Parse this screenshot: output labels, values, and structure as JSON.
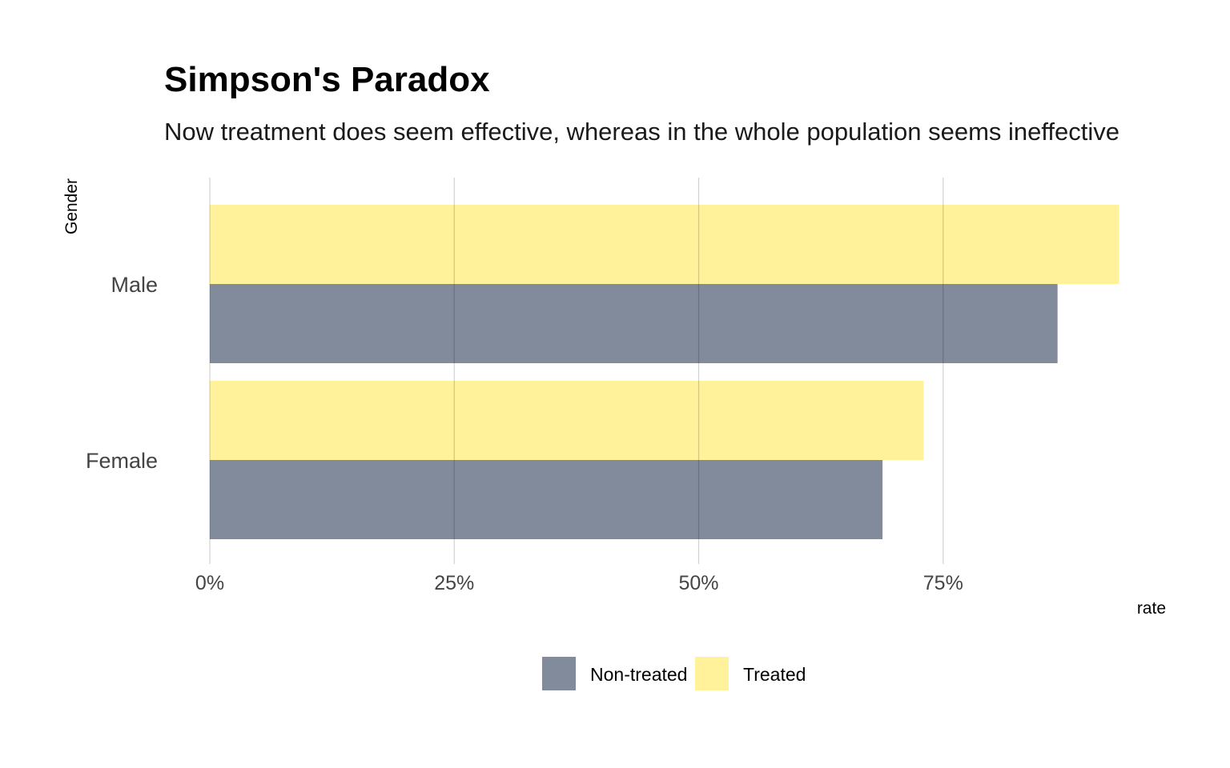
{
  "chart_data": {
    "type": "bar",
    "orientation": "horizontal",
    "title": "Simpson's Paradox",
    "subtitle": "Now treatment does seem effective, whereas in the whole population seems ineffective",
    "xlabel": "rate",
    "ylabel": "Gender",
    "categories": [
      "Male",
      "Female"
    ],
    "series": [
      {
        "name": "Treated",
        "color": "#FFF29A",
        "values": [
          0.93,
          0.73
        ]
      },
      {
        "name": "Non-treated",
        "color": "#828B9B",
        "values": [
          0.867,
          0.688
        ]
      }
    ],
    "legend_order": [
      "Non-treated",
      "Treated"
    ],
    "xlim": [
      0,
      0.95
    ],
    "ticks": [
      {
        "value": 0,
        "label": "0%"
      },
      {
        "value": 0.25,
        "label": "25%"
      },
      {
        "value": 0.5,
        "label": "50%"
      },
      {
        "value": 0.75,
        "label": "75%"
      }
    ],
    "grid": true,
    "legend_position": "bottom"
  }
}
